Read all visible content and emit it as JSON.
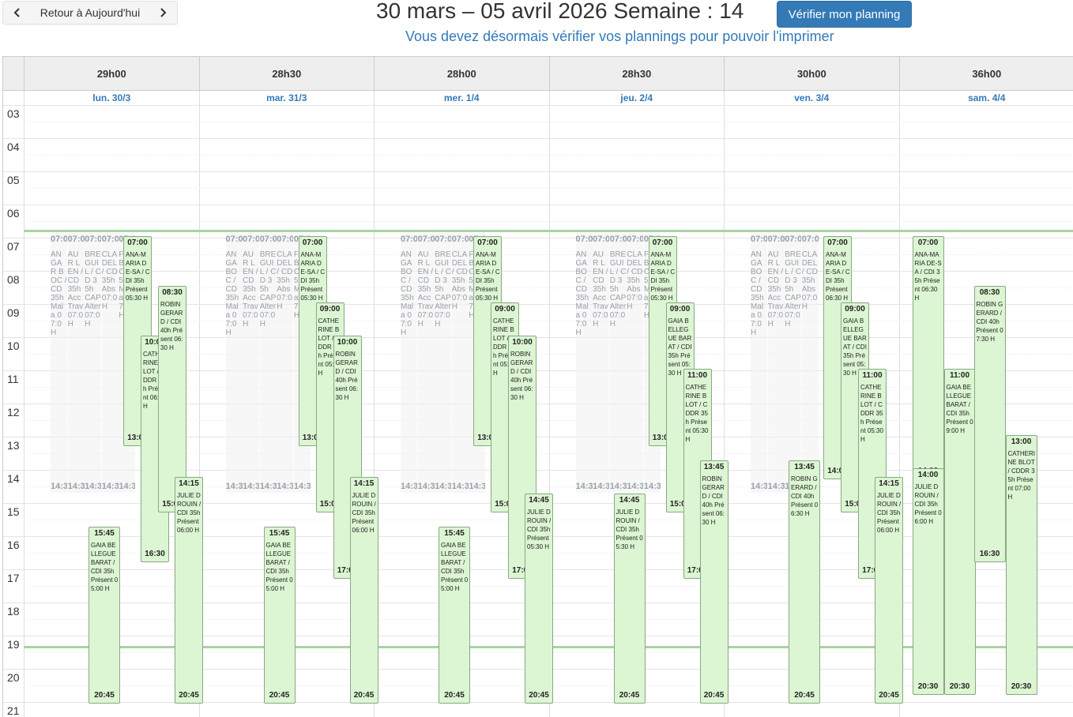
{
  "toolbar": {
    "today_label": "Retour à Aujourd'hui",
    "title": "30 mars – 05 avril 2026 Semaine : 14",
    "verify_label": "Vérifier mon planning",
    "notice": "Vous devez désormais vérifier vos plannings pour pouvoir l'imprimer"
  },
  "days": [
    {
      "total": "29h00",
      "label": "lun. 30/3"
    },
    {
      "total": "28h30",
      "label": "mar. 31/3"
    },
    {
      "total": "28h00",
      "label": "mer. 1/4"
    },
    {
      "total": "28h30",
      "label": "jeu. 2/4"
    },
    {
      "total": "30h00",
      "label": "ven. 3/4"
    },
    {
      "total": "36h00",
      "label": "sam. 4/4"
    }
  ],
  "hours": [
    "03",
    "04",
    "05",
    "06",
    "07",
    "08",
    "09",
    "10",
    "11",
    "12",
    "13",
    "14",
    "15",
    "16",
    "17",
    "18",
    "19",
    "20",
    "21"
  ],
  "colors": {
    "event_bg": "#dcf5d2",
    "event_border": "#8aa886",
    "accent": "#337ab7",
    "now_line": "#a9d3a5"
  },
  "ghosts": [
    {
      "day": 0,
      "col": 0,
      "start": "07:00",
      "body": "ANGAR BOC / CD 35h Mala 07:0 H",
      "end": "14:30"
    },
    {
      "day": 0,
      "col": 1,
      "start": "07:00",
      "body": "AUR LEN / CD 35h Acc Trav 07:0 H",
      "end": "14:30"
    },
    {
      "day": 0,
      "col": 2,
      "start": "07:00",
      "body": "BRE GUIL / CD 35h CAP Alter 07:0 H",
      "end": "14:30"
    },
    {
      "day": 0,
      "col": 3,
      "start": "07:00",
      "body": "CLA DEL / CD 35h Abs 07:0 H",
      "end": "14:30"
    },
    {
      "day": 0,
      "col": 4,
      "start": "07:00",
      "body": "FA BE / C 35h Mala 07:0 H",
      "end": "14:30"
    },
    {
      "day": 1,
      "col": 0,
      "start": "07:00",
      "body": "ANGA BOC / CD 35h Mala 07:0 H",
      "end": "14:30"
    },
    {
      "day": 1,
      "col": 1,
      "start": "07:00",
      "body": "AUR LEN / CD 35h Acc Trav 07:0 H",
      "end": "14:30"
    },
    {
      "day": 1,
      "col": 2,
      "start": "07:00",
      "body": "BRE GUIL / CD 35h CAP Alter 07:0 H",
      "end": "14:30"
    },
    {
      "day": 1,
      "col": 3,
      "start": "07:00",
      "body": "CLA DEL / CD 35h Abs 07:0 H",
      "end": "14:30"
    },
    {
      "day": 1,
      "col": 4,
      "start": "07:00",
      "body": "FA BE / C 35h Mala 07:0 H",
      "end": "14:30"
    },
    {
      "day": 2,
      "col": 0,
      "start": "07:00",
      "body": "ANGA BOC / CD 35h Mala 07:0 H",
      "end": "14:30"
    },
    {
      "day": 2,
      "col": 1,
      "start": "07:00",
      "body": "AUR LEN / CD 35h Acc Trav 07:0 H",
      "end": "14:30"
    },
    {
      "day": 2,
      "col": 2,
      "start": "07:00",
      "body": "BRE GUIL / CD 35h CAP Alter 07:0 H",
      "end": "14:30"
    },
    {
      "day": 2,
      "col": 3,
      "start": "07:00",
      "body": "CLA DEL / CD 35h Abs 07:0 H",
      "end": "14:30"
    },
    {
      "day": 2,
      "col": 4,
      "start": "07:00",
      "body": "FA BE / C 35h Mala 07:0 H",
      "end": "14:30"
    },
    {
      "day": 3,
      "col": 0,
      "start": "07:00",
      "body": "ANGA BOC / CD 35h Mala 07:0 H",
      "end": "14:30"
    },
    {
      "day": 3,
      "col": 1,
      "start": "07:00",
      "body": "AUR LEN / CD 35h Acc Trav 07:0 H",
      "end": "14:30"
    },
    {
      "day": 3,
      "col": 2,
      "start": "07:00",
      "body": "BRE GUIL / CD 35h CAP Alter 07:0 H",
      "end": "14:30"
    },
    {
      "day": 3,
      "col": 3,
      "start": "07:00",
      "body": "CLA DEL / CD 35h Abs 07:0 H",
      "end": "14:30"
    },
    {
      "day": 3,
      "col": 4,
      "start": "07:00",
      "body": "FA BE / C 35h Mala 07:0 H",
      "end": "14:30"
    },
    {
      "day": 4,
      "col": 0,
      "start": "07:00",
      "body": "ANGA BOC / CD 35h Mala 07:0 H",
      "end": "14:30"
    },
    {
      "day": 4,
      "col": 1,
      "start": "07:00",
      "body": "AUR LEN / CD 35h Acc Trav 07:0 H",
      "end": "14:30"
    },
    {
      "day": 4,
      "col": 2,
      "start": "07:00",
      "body": "BRE GUIL / CD 35h CAP Alter 07:0 H",
      "end": "14:30"
    },
    {
      "day": 4,
      "col": 3,
      "start": "07:00",
      "body": "CLA DEL / CD 35h Abs 07:0 H",
      "end": "14:30"
    }
  ],
  "events": [
    {
      "day": 0,
      "start": "07:00",
      "end": "13:00",
      "col": 0,
      "label": "ANA-MARIA DE-SA / CDI 35h Présent 05:30 H"
    },
    {
      "day": 0,
      "start": "10:00",
      "end": "16:30",
      "col": 1,
      "label": "CATHERINE BLOT / CDDR 35h Présent 06:00 H"
    },
    {
      "day": 0,
      "start": "08:30",
      "end": "15:00",
      "col": 2,
      "label": "ROBIN GERARD / CDI 40h Présent 06:30 H"
    },
    {
      "day": 0,
      "start": "14:15",
      "end": "20:45",
      "col": 3,
      "label": "JULIE DROUIN / CDI 35h Présent 06:00 H"
    },
    {
      "day": 0,
      "start": "15:45",
      "end": "20:45",
      "col": 4,
      "label": "GAIA BELLEGUE BARAT / CDI 35h Présent 05:00 H"
    },
    {
      "day": 1,
      "start": "07:00",
      "end": "13:00",
      "col": 0,
      "label": "ANA-MARIA DE-SA / CDI 35h Présent 05:30 H"
    },
    {
      "day": 1,
      "start": "09:00",
      "end": "15:00",
      "col": 1,
      "label": "CATHERINE BLOT / CDDR 35h Présent 05:30 H"
    },
    {
      "day": 1,
      "start": "10:00",
      "end": "17:00",
      "col": 2,
      "label": "ROBIN GERARD / CDI 40h Présent 06:30 H"
    },
    {
      "day": 1,
      "start": "14:15",
      "end": "20:45",
      "col": 3,
      "label": "JULIE DROUIN / CDI 35h Présent 06:00 H"
    },
    {
      "day": 1,
      "start": "15:45",
      "end": "20:45",
      "col": 4,
      "label": "GAIA BELLEGUE BARAT / CDI 35h Présent 05:00 H"
    },
    {
      "day": 2,
      "start": "07:00",
      "end": "13:00",
      "col": 0,
      "label": "ANA-MARIA DE-SA / CDI 35h Présent 05:30 H"
    },
    {
      "day": 2,
      "start": "09:00",
      "end": "15:00",
      "col": 1,
      "label": "CATHERINE BLOT / CDDR 35h Présent 05:30 H"
    },
    {
      "day": 2,
      "start": "10:00",
      "end": "17:00",
      "col": 2,
      "label": "ROBIN GERARD / CDI 40h Présent 06:30 H"
    },
    {
      "day": 2,
      "start": "14:45",
      "end": "20:45",
      "col": 3,
      "label": "JULIE DROUIN / CDI 35h Présent 05:30 H"
    },
    {
      "day": 2,
      "start": "15:45",
      "end": "20:45",
      "col": 4,
      "label": "GAIA BELLEGUE BARAT / CDI 35h Présent 05:00 H"
    },
    {
      "day": 3,
      "start": "07:00",
      "end": "13:00",
      "col": 0,
      "label": "ANA-MARIA DE-SA / CDI 35h Présent 05:30 H"
    },
    {
      "day": 3,
      "start": "09:00",
      "end": "15:00",
      "col": 1,
      "label": "GAIA BELLEGUE BARAT / CDI 35h Présent 05:30 H"
    },
    {
      "day": 3,
      "start": "11:00",
      "end": "17:00",
      "col": 2,
      "label": "CATHERINE BLOT / CDDR 35h Présent 05:30 H"
    },
    {
      "day": 3,
      "start": "13:45",
      "end": "20:45",
      "col": 3,
      "label": "ROBIN GERARD / CDI 40h Présent 06:30 H"
    },
    {
      "day": 3,
      "start": "14:45",
      "end": "20:45",
      "col": 4,
      "label": "JULIE DROUIN / CDI 35h Présent 05:30 H"
    },
    {
      "day": 4,
      "start": "07:00",
      "end": "14:00",
      "col": 0,
      "label": "ANA-MARIA DE-SA / CDI 35h Présent 06:30 H"
    },
    {
      "day": 4,
      "start": "09:00",
      "end": "15:00",
      "col": 1,
      "label": "GAIA BELLEGUE BARAT / CDI 35h Présent 05:30 H"
    },
    {
      "day": 4,
      "start": "11:00",
      "end": "17:00",
      "col": 2,
      "label": "CATHERINE BLOT / CDDR 35h Présent 05:30 H"
    },
    {
      "day": 4,
      "start": "14:15",
      "end": "20:45",
      "col": 3,
      "label": "JULIE DROUIN / CDI 35h Présent 06:00 H"
    },
    {
      "day": 4,
      "start": "13:45",
      "end": "20:45",
      "col": 4,
      "label": "ROBIN GERARD / CDI 40h Présent 06:30 H"
    },
    {
      "day": 5,
      "start": "07:00",
      "end": "14:00",
      "col": 0,
      "label": "ANA-MARIA DE-SA / CDI 35h Présent 06:30 H"
    },
    {
      "day": 5,
      "start": "14:00",
      "end": "20:30",
      "col": 0,
      "label": "JULIE DROUIN / CDI 35h Présent 06:00 H"
    },
    {
      "day": 5,
      "start": "11:00",
      "end": "20:30",
      "col": 1,
      "label": "GAIA BELLEGUE BARAT / CDI 35h Présent 09:00 H"
    },
    {
      "day": 5,
      "start": "08:30",
      "end": "16:30",
      "col": 2,
      "label": "ROBIN GERARD / CDI 40h Présent 07:30 H"
    },
    {
      "day": 5,
      "start": "13:00",
      "end": "20:30",
      "col": 3,
      "label": "CATHERINE BLOT / CDDR 35h Présent 07:00 H"
    }
  ]
}
